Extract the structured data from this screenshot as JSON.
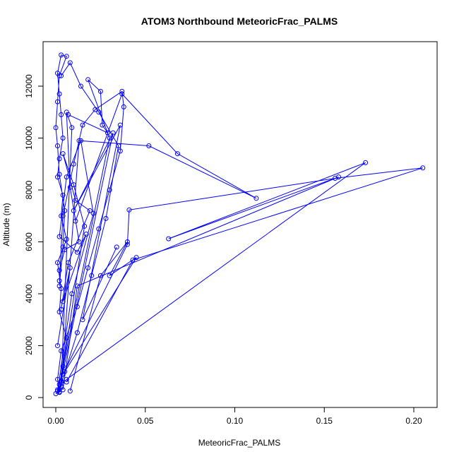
{
  "chart_data": {
    "type": "line",
    "title": "ATOM3 Northbound MeteoricFrac_PALMS",
    "xlabel": "MeteoricFrac_PALMS",
    "ylabel": "Altitude (m)",
    "xlim": [
      0,
      0.205
    ],
    "ylim": [
      150,
      13200
    ],
    "x_ticks": [
      0.0,
      0.05,
      0.1,
      0.15,
      0.2
    ],
    "x_tick_labels": [
      "0.00",
      "0.05",
      "0.10",
      "0.15",
      "0.20"
    ],
    "y_ticks": [
      0,
      2000,
      4000,
      6000,
      8000,
      10000,
      12000
    ],
    "y_tick_labels": [
      "0",
      "2000",
      "4000",
      "6000",
      "8000",
      "10000",
      "12000"
    ],
    "grid": false,
    "legend": "none",
    "series_color": "#0000ff",
    "marker": "open-circle",
    "series": [
      {
        "x": [
          0.0,
          0.002,
          0.001,
          0.003,
          0.004,
          0.006,
          0.002,
          0.003,
          0.001,
          0.006,
          0.003,
          0.004,
          0.001,
          0.002,
          0.004,
          0.003,
          0.002,
          0.001,
          0.003,
          0.006,
          0.002,
          0.001,
          0.0,
          0.001,
          0.002,
          0.005,
          0.004,
          0.002
        ],
        "y": [
          150,
          220,
          300,
          450,
          1200,
          2300,
          3300,
          4200,
          5200,
          6100,
          7000,
          7800,
          8500,
          9200,
          10000,
          10900,
          11700,
          12500,
          13200,
          13150,
          12400,
          11400,
          10400,
          9700,
          8600,
          7200,
          5800,
          4300
        ]
      },
      {
        "x": [
          0.002,
          0.001,
          0.003,
          0.012,
          0.018,
          0.024,
          0.03,
          0.036,
          0.038,
          0.037,
          0.022,
          0.015,
          0.01,
          0.004,
          0.002
        ],
        "y": [
          200,
          700,
          1800,
          3500,
          5000,
          6500,
          8000,
          9500,
          11200,
          11800,
          11100,
          10500,
          9000,
          7000,
          4500
        ]
      },
      {
        "x": [
          0.002,
          0.012,
          0.02,
          0.028,
          0.035,
          0.024,
          0.014,
          0.008,
          0.003
        ],
        "y": [
          300,
          2500,
          4700,
          6900,
          9700,
          11000,
          12000,
          12900,
          12400
        ]
      },
      {
        "x": [
          0.003,
          0.013,
          0.052,
          0.112,
          0.068,
          0.037,
          0.011
        ],
        "y": [
          400,
          9900,
          9700,
          7680,
          9400,
          11700,
          6800
        ]
      },
      {
        "x": [
          0.002,
          0.03,
          0.018,
          0.025,
          0.026,
          0.029,
          0.007
        ],
        "y": [
          500,
          10000,
          12250,
          11800,
          10500,
          10200,
          10900
        ]
      },
      {
        "x": [
          0.003,
          0.032,
          0.01,
          0.036,
          0.015,
          0.034
        ],
        "y": [
          650,
          10200,
          7200,
          10500,
          3000,
          5800
        ]
      },
      {
        "x": [
          0.004,
          0.04,
          0.041,
          0.156,
          0.205,
          0.043,
          0.006
        ],
        "y": [
          900,
          5900,
          7230,
          8450,
          8850,
          5300,
          600
        ]
      },
      {
        "x": [
          0.006,
          0.173,
          0.063,
          0.158,
          0.012,
          0.004
        ],
        "y": [
          700,
          9050,
          6120,
          8500,
          4300,
          300
        ]
      },
      {
        "x": [
          0.005,
          0.045,
          0.03,
          0.04,
          0.025,
          0.008
        ],
        "y": [
          1000,
          5400,
          4700,
          6000,
          4700,
          250
        ]
      },
      {
        "x": [
          0.001,
          0.009,
          0.021,
          0.014,
          0.006,
          0.002,
          0.012,
          0.017,
          0.004,
          0.008,
          0.001
        ],
        "y": [
          250,
          4000,
          7100,
          9900,
          8500,
          6200,
          5600,
          6300,
          3700,
          5000,
          2000
        ]
      },
      {
        "x": [
          0.002,
          0.016,
          0.01,
          0.004,
          0.011,
          0.019,
          0.007,
          0.003
        ],
        "y": [
          200,
          6600,
          8200,
          9400,
          7600,
          7200,
          5200,
          3400
        ]
      },
      {
        "x": [
          0.003,
          0.009,
          0.006,
          0.008,
          0.013,
          0.005,
          0.002
        ],
        "y": [
          600,
          10400,
          11000,
          8100,
          6000,
          5700,
          4900
        ]
      }
    ]
  }
}
